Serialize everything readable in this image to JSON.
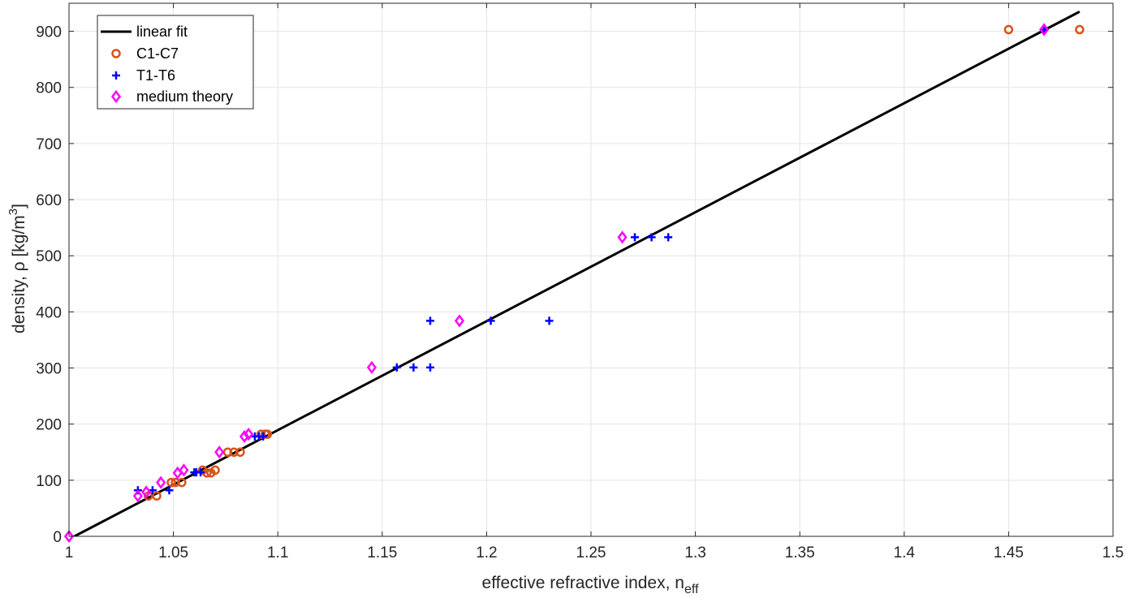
{
  "chart_data": {
    "type": "scatter",
    "xlabel": "effective refractive index, n",
    "xlabel_sub": "eff",
    "ylabel": "density, ρ [kg/m",
    "ylabel_sup": "3",
    "ylabel_end": "]",
    "xlim": [
      1,
      1.5
    ],
    "ylim": [
      0,
      950
    ],
    "xticks": [
      1,
      1.05,
      1.1,
      1.15,
      1.2,
      1.25,
      1.3,
      1.35,
      1.4,
      1.45,
      1.5
    ],
    "xtick_labels": [
      "1",
      "1.05",
      "1.1",
      "1.15",
      "1.2",
      "1.25",
      "1.3",
      "1.35",
      "1.4",
      "1.45",
      "1.5"
    ],
    "yticks": [
      0,
      100,
      200,
      300,
      400,
      500,
      600,
      700,
      800,
      900
    ],
    "ytick_labels": [
      "0",
      "100",
      "200",
      "300",
      "400",
      "500",
      "600",
      "700",
      "800",
      "900"
    ],
    "grid": true,
    "legend_position": "top-left",
    "colors": {
      "fit": "#000000",
      "c": "#D95319",
      "t": "#0000FF",
      "m": "#FF00FF",
      "grid": "#E3E3E3",
      "axis": "#262626"
    },
    "series": [
      {
        "name": "linear fit",
        "kind": "line",
        "x": [
          1.0,
          1.484
        ],
        "y": [
          -5,
          935
        ]
      },
      {
        "name": "C1-C7",
        "kind": "circle",
        "x": [
          1.038,
          1.042,
          1.049,
          1.051,
          1.054,
          1.064,
          1.066,
          1.068,
          1.07,
          1.076,
          1.079,
          1.082,
          1.092,
          1.094,
          1.095,
          1.45,
          1.484
        ],
        "y": [
          72,
          72,
          96,
          96,
          96,
          118,
          113,
          113,
          118,
          150,
          150,
          150,
          182,
          182,
          182,
          903,
          903
        ]
      },
      {
        "name": "T1-T6",
        "kind": "plus",
        "x": [
          1.033,
          1.04,
          1.048,
          1.06,
          1.061,
          1.063,
          1.089,
          1.091,
          1.093,
          1.157,
          1.165,
          1.173,
          1.173,
          1.202,
          1.23,
          1.271,
          1.279,
          1.287,
          1.467
        ],
        "y": [
          82,
          82,
          82,
          114,
          114,
          114,
          178,
          178,
          178,
          301,
          301,
          301,
          384,
          384,
          384,
          533,
          533,
          533,
          903
        ]
      },
      {
        "name": "medium theory",
        "kind": "diamond",
        "x": [
          1.0,
          1.033,
          1.037,
          1.044,
          1.052,
          1.055,
          1.072,
          1.084,
          1.086,
          1.145,
          1.187,
          1.265,
          1.467
        ],
        "y": [
          0,
          72,
          79,
          96,
          113,
          118,
          150,
          178,
          182,
          301,
          384,
          533,
          903
        ]
      }
    ]
  }
}
